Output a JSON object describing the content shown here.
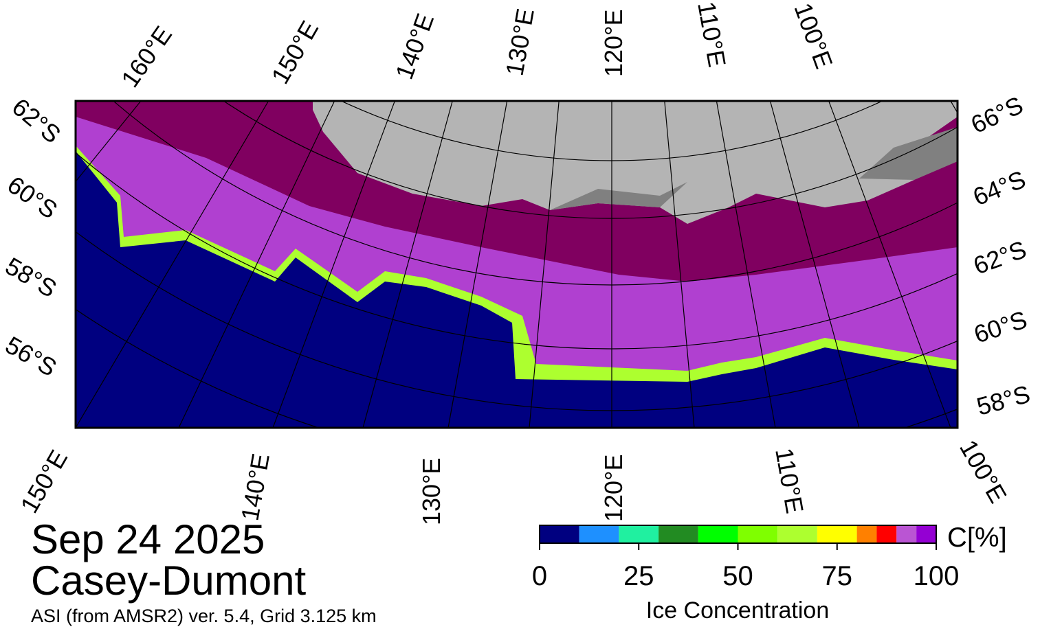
{
  "title": "Sep 24 2025",
  "region": "Casey-Dumont",
  "source": "ASI (from AMSR2) ver. 5.4,  Grid 3.125 km",
  "top_longitude_labels": [
    "160°E",
    "150°E",
    "140°E",
    "130°E",
    "120°E",
    "110°E",
    "100°E"
  ],
  "bottom_longitude_labels": [
    "150°E",
    "140°E",
    "130°E",
    "120°E",
    "110°E",
    "100°E"
  ],
  "left_latitude_labels": [
    "62°S",
    "60°S",
    "58°S",
    "56°S"
  ],
  "right_latitude_labels": [
    "66°S",
    "64°S",
    "62°S",
    "60°S",
    "58°S"
  ],
  "colorbar": {
    "label": "Ice Concentration",
    "unit": "C[%]",
    "lim": [
      0,
      100
    ],
    "ticks": [
      0,
      25,
      50,
      75,
      100
    ],
    "bounds": [
      0,
      10,
      20,
      30,
      40,
      50,
      60,
      70,
      80,
      85,
      90,
      95,
      100
    ],
    "colors": [
      "#000080",
      "#1e90ff",
      "#20f0a0",
      "#228b22",
      "#00ff00",
      "#7fff00",
      "#adff2f",
      "#ffff00",
      "#ff8000",
      "#ff0000",
      "#ba55d3",
      "#9400d3"
    ]
  }
}
